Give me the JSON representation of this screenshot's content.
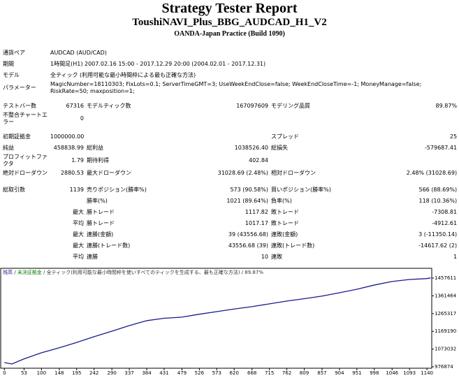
{
  "header": {
    "title": "Strategy Tester Report",
    "subtitle": "ToushiNAVI_Plus_BBG_AUDCAD_H1_V2",
    "broker": "OANDA-Japan Practice (Build 1090)"
  },
  "table": {
    "sections": [
      [
        [
          "通貨ペア",
          "AUDCAD (AUD/CAD)"
        ],
        [
          "期間",
          "1時間足(H1) 2007.02.16 15:00 - 2017.12.29 20:00 (2004.02.01 - 2017.12.31)"
        ],
        [
          "モデル",
          "全ティック (利用可能な最小時間枠による最も正確な方法)"
        ],
        [
          "パラメーター",
          "MagicNumber=18110303; FixLots=0.1; ServerTimeGMT=3; UseWeekEndClose=false; WeekEndCloseTime=-1; MoneyManage=false; RiskRate=50; maxposition=1;"
        ]
      ],
      [
        [
          "テストバー数",
          "67316",
          "モデルティック数",
          "167097609",
          "モデリング品質",
          "89.87%"
        ],
        [
          "不整合チャートエラー",
          "0",
          null,
          null,
          null,
          null
        ]
      ],
      [
        [
          "初期証拠金",
          "1000000.00",
          null,
          null,
          "スプレッド",
          "25"
        ],
        [
          "純益",
          "458838.99",
          "総利益",
          "1038526.40",
          "総損失",
          "-579687.41"
        ],
        [
          "プロフィットファクタ",
          "1.79",
          "期待利得",
          "402.84",
          null,
          null
        ],
        [
          "絶対ドローダウン",
          "2880.53",
          "最大ドローダウン",
          "31028.69 (2.48%)",
          "相対ドローダウン",
          "2.48% (31028.69)"
        ]
      ],
      [
        [
          "総取引数",
          "1139",
          "売りポジション(勝率%)",
          "573 (90.58%)",
          "買いポジション(勝率%)",
          "566 (88.69%)"
        ],
        [
          null,
          null,
          "勝率(%)",
          "1021 (89.64%)",
          "負率(%)",
          "118 (10.36%)"
        ],
        [
          null,
          "最大",
          "勝トレード",
          "1117.82",
          "敗トレード",
          "-7308.81"
        ],
        [
          null,
          "平均",
          "勝トレード",
          "1017.17",
          "敗トレード",
          "-4912.61"
        ],
        [
          null,
          "最大",
          "連勝(金額)",
          "39 (43556.68)",
          "連敗(金額)",
          "3 (-11350.14)"
        ],
        [
          null,
          "最大",
          "連勝(トレード数)",
          "43556.68 (39)",
          "連敗(トレード数)",
          "-14617.62 (2)"
        ],
        [
          null,
          "平均",
          "連勝",
          "10",
          "連敗",
          "1"
        ]
      ]
    ]
  },
  "chart_data": {
    "type": "line",
    "series": [
      {
        "name": "残高",
        "color": "#1a1a8c",
        "values": [
          1000000,
          992000,
          1020000,
          1053000,
          1080000,
          1109000,
          1140000,
          1170000,
          1200000,
          1227000,
          1240000,
          1246000,
          1262000,
          1276000,
          1290000,
          1303000,
          1318000,
          1333000,
          1346000,
          1360000,
          1378000,
          1397000,
          1420000,
          1439000,
          1450000,
          1455000,
          1458839
        ]
      }
    ],
    "x": [
      0,
      20,
      53,
      100,
      148,
      195,
      242,
      290,
      337,
      384,
      431,
      479,
      526,
      573,
      620,
      668,
      715,
      762,
      809,
      857,
      904,
      951,
      998,
      1046,
      1093,
      1140,
      1150
    ],
    "legend_extra": [
      {
        "text": "未決証拠金",
        "color": "#008000"
      },
      {
        "text": "全ティック(利用可能な最小時間枠を使いすべてのティックを生成する、最も正確な方法)",
        "color": "#333333"
      },
      {
        "text": "89.87%",
        "color": "#333333"
      }
    ],
    "legend_separator": " / ",
    "xlim": [
      -10,
      1153
    ],
    "ylim": [
      969300,
      1510600
    ],
    "xticks": [
      0,
      53,
      100,
      148,
      195,
      242,
      290,
      337,
      384,
      431,
      479,
      526,
      573,
      620,
      668,
      715,
      762,
      809,
      857,
      904,
      951,
      998,
      1046,
      1093,
      1140
    ],
    "yticks": [
      976874,
      1073032,
      1169190,
      1265317,
      1361464,
      1457611
    ]
  }
}
